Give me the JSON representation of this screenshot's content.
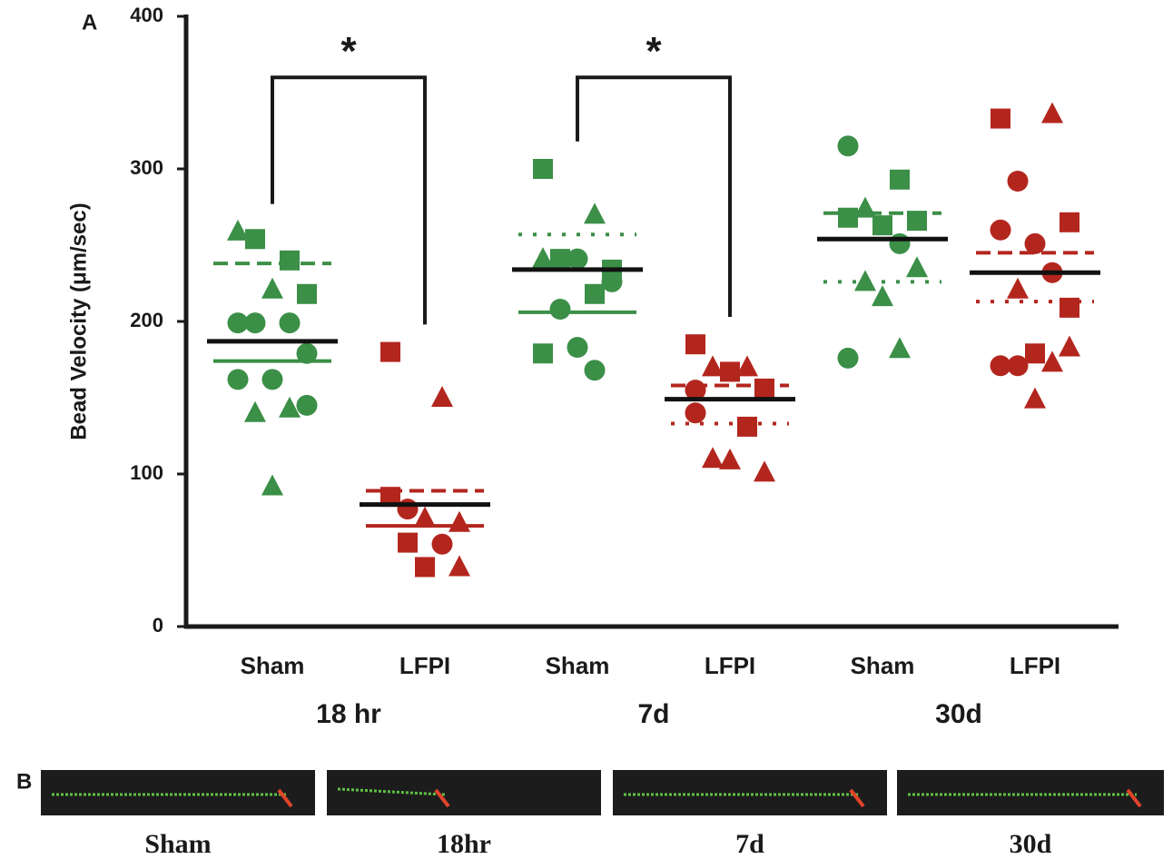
{
  "chart_data": {
    "type": "dot",
    "panel_label": "A",
    "y_label": "Bead Velocity (μm/sec)",
    "ylim": [
      0,
      400
    ],
    "yticks": [
      0,
      100,
      200,
      300,
      400
    ],
    "timepoints": [
      "18 hr",
      "7d",
      "30d"
    ],
    "groups": [
      {
        "name": "Sham",
        "color": "#3b8f47",
        "mean": 187,
        "values": [
          259,
          240,
          254,
          218,
          221,
          199,
          199,
          199,
          179,
          162,
          162,
          143,
          140,
          145,
          92
        ],
        "markers": [
          "triangle",
          "square",
          "square",
          "square",
          "triangle",
          "circle",
          "circle",
          "circle",
          "circle",
          "circle",
          "circle",
          "triangle",
          "triangle",
          "circle",
          "triangle"
        ],
        "ref_lines": [
          {
            "value": 238,
            "style": "dashed"
          },
          {
            "value": 174,
            "style": "solid"
          }
        ]
      },
      {
        "name": "LFPI",
        "color": "#b3261e",
        "mean": 80,
        "values": [
          180,
          150,
          77,
          68,
          71,
          85,
          54,
          55,
          39,
          39
        ],
        "markers": [
          "square",
          "triangle",
          "circle",
          "triangle",
          "triangle",
          "square",
          "circle",
          "square",
          "triangle",
          "square"
        ],
        "ref_lines": [
          {
            "value": 89,
            "style": "dashed"
          },
          {
            "value": 66,
            "style": "solid"
          }
        ]
      },
      {
        "name": "Sham",
        "color": "#3b8f47",
        "mean": 234,
        "values": [
          300,
          270,
          241,
          234,
          241,
          241,
          218,
          208,
          226,
          183,
          179,
          168
        ],
        "markers": [
          "square",
          "triangle",
          "square",
          "square",
          "circle",
          "triangle",
          "square",
          "circle",
          "circle",
          "circle",
          "square",
          "circle"
        ],
        "ref_lines": [
          {
            "value": 257,
            "style": "dotted"
          },
          {
            "value": 206,
            "style": "solid"
          }
        ]
      },
      {
        "name": "LFPI",
        "color": "#b3261e",
        "mean": 149,
        "values": [
          185,
          170,
          170,
          156,
          167,
          140,
          131,
          110,
          101,
          109,
          155
        ],
        "markers": [
          "square",
          "triangle",
          "triangle",
          "square",
          "square",
          "circle",
          "square",
          "triangle",
          "triangle",
          "triangle",
          "circle"
        ],
        "ref_lines": [
          {
            "value": 158,
            "style": "dashed"
          },
          {
            "value": 133,
            "style": "dotted"
          }
        ]
      },
      {
        "name": "Sham",
        "color": "#3b8f47",
        "mean": 254,
        "values": [
          315,
          293,
          274,
          266,
          263,
          268,
          251,
          226,
          235,
          216,
          176,
          182
        ],
        "markers": [
          "circle",
          "square",
          "triangle",
          "square",
          "square",
          "square",
          "circle",
          "triangle",
          "triangle",
          "triangle",
          "circle",
          "triangle"
        ],
        "ref_lines": [
          {
            "value": 271,
            "style": "dashed"
          },
          {
            "value": 226,
            "style": "dotted"
          }
        ]
      },
      {
        "name": "LFPI",
        "color": "#b3261e",
        "mean": 232,
        "values": [
          333,
          336,
          292,
          265,
          251,
          260,
          232,
          221,
          209,
          179,
          171,
          173,
          171,
          183,
          149
        ],
        "markers": [
          "square",
          "triangle",
          "circle",
          "square",
          "circle",
          "circle",
          "circle",
          "triangle",
          "square",
          "square",
          "circle",
          "triangle",
          "circle",
          "triangle",
          "triangle"
        ],
        "ref_lines": [
          {
            "value": 245,
            "style": "dashed"
          },
          {
            "value": 213,
            "style": "dotted"
          }
        ]
      }
    ],
    "annotations": [
      {
        "text": "*",
        "groups": [
          0,
          1
        ],
        "y": 360
      },
      {
        "text": "*",
        "groups": [
          2,
          3
        ],
        "y": 360
      }
    ]
  },
  "panel_b": {
    "label": "B",
    "images": [
      "Sham",
      "18hr",
      "7d",
      "30d"
    ]
  }
}
